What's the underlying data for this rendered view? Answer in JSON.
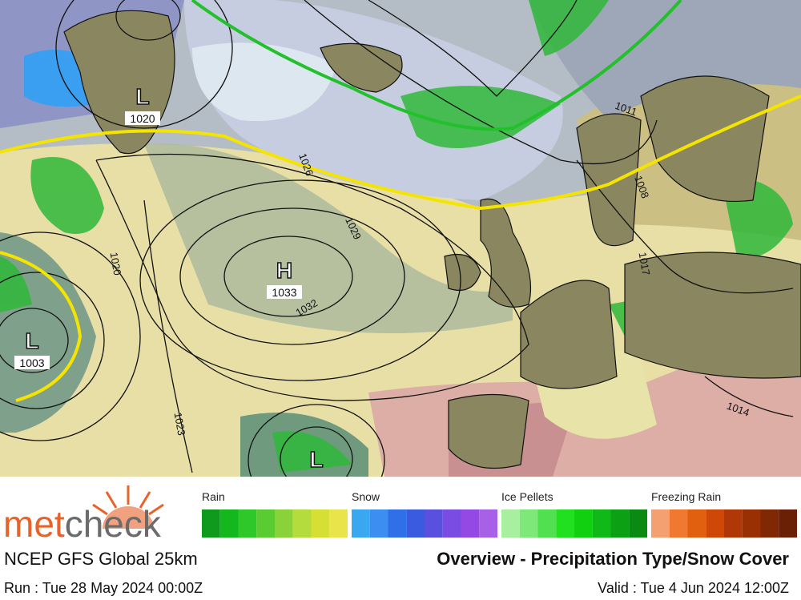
{
  "map": {
    "pressure_centers": [
      {
        "letter": "L",
        "value": "1020"
      },
      {
        "letter": "H",
        "value": "1033"
      },
      {
        "letter": "L",
        "value": "1003"
      },
      {
        "letter": "L",
        "value": null
      }
    ],
    "isobar_labels": [
      "1026",
      "1029",
      "1032",
      "1020",
      "1023",
      "1011",
      "1008",
      "1017",
      "1014"
    ]
  },
  "legend": [
    {
      "label": "Rain",
      "colors": [
        "#0f9a1e",
        "#14b81e",
        "#2fc82a",
        "#5acc32",
        "#8ad23a",
        "#b4dc3c",
        "#d6e034",
        "#e8e44a"
      ]
    },
    {
      "label": "Snow",
      "colors": [
        "#3aa8f0",
        "#3c8ef0",
        "#2f6fe8",
        "#3a5ae0",
        "#5a50e0",
        "#7a4ce4",
        "#9448e4",
        "#a860e8"
      ]
    },
    {
      "label": "Ice Pellets",
      "colors": [
        "#a8f0a0",
        "#7ee878",
        "#50e050",
        "#20e020",
        "#10d010",
        "#10b818",
        "#0ca014",
        "#0a8a12"
      ]
    },
    {
      "label": "Freezing Rain",
      "colors": [
        "#f4a070",
        "#f07830",
        "#e06010",
        "#d04808",
        "#b03806",
        "#983004",
        "#802804",
        "#6a2004"
      ]
    }
  ],
  "footer": {
    "logo": {
      "part1": "met",
      "part2": "check"
    },
    "model": "NCEP GFS Global 25km",
    "run": "Run : Tue 28 May 2024 00:00Z",
    "title": "Overview - Precipitation Type/Snow Cover",
    "valid": "Valid : Tue 4 Jun 2024 12:00Z"
  }
}
